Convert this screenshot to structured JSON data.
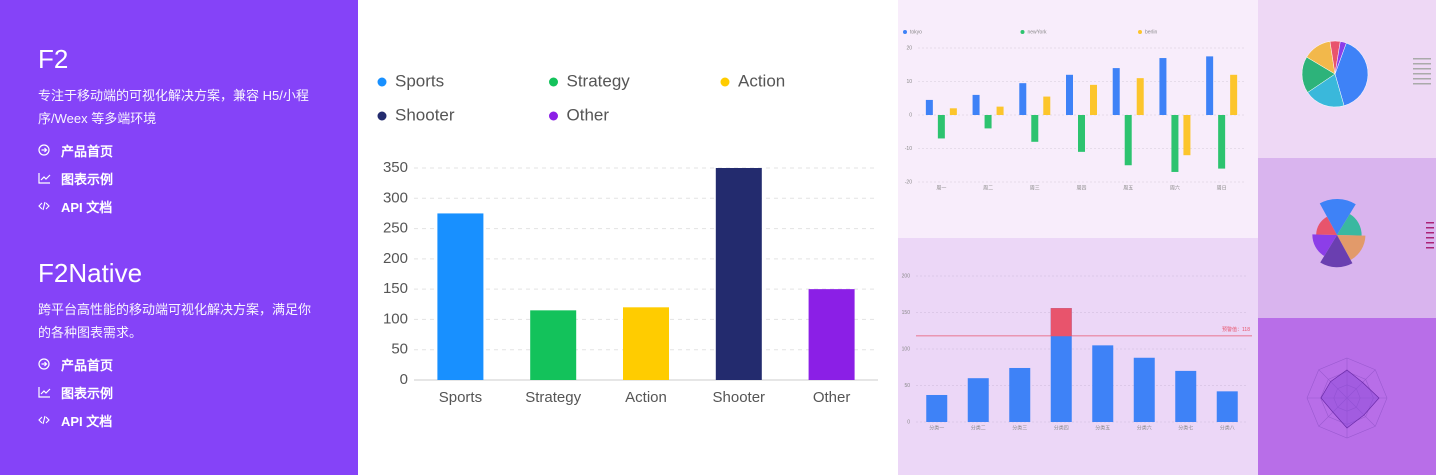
{
  "sidebar": [
    {
      "title": "F2",
      "description": "专注于移动端的可视化解决方案，兼容 H5/小程序/Weex 等多端环境",
      "links": [
        "产品首页",
        "图表示例",
        "API 文档"
      ]
    },
    {
      "title": "F2Native",
      "description": "跨平台高性能的移动端可视化解决方案，满足你的各种图表需求。",
      "links": [
        "产品首页",
        "图表示例",
        "API 文档"
      ]
    }
  ],
  "chart_data": [
    {
      "type": "bar",
      "categories": [
        "Sports",
        "Strategy",
        "Action",
        "Shooter",
        "Other"
      ],
      "values": [
        275,
        115,
        120,
        350,
        150
      ],
      "colors": [
        "#1890ff",
        "#13c25b",
        "#ffcc00",
        "#232b6e",
        "#8b1fe6"
      ],
      "ylim": [
        0,
        350
      ],
      "yticks": [
        0,
        50,
        100,
        150,
        200,
        250,
        300,
        350
      ],
      "grid": true,
      "legend": "top"
    },
    {
      "type": "grouped_bar",
      "categories": [
        "周一",
        "周二",
        "周三",
        "周四",
        "周五",
        "周六",
        "周日"
      ],
      "series": [
        {
          "name": "tokyo",
          "color": "#3e82f7",
          "values": [
            4.5,
            6,
            9.5,
            12,
            14,
            17,
            17.5
          ]
        },
        {
          "name": "newYork",
          "color": "#2dc36f",
          "values": [
            -7,
            -4,
            -8,
            -11,
            -15,
            -17,
            -16
          ]
        },
        {
          "name": "berlin",
          "color": "#fcc52c",
          "values": [
            2,
            2.5,
            5.5,
            9,
            11,
            -12,
            12
          ]
        }
      ],
      "ylim": [
        -20,
        20
      ],
      "yticks": [
        -20,
        -10,
        0,
        10,
        20
      ],
      "grid": true
    },
    {
      "type": "threshold_bar",
      "categories": [
        "分类一",
        "分类二",
        "分类三",
        "分类四",
        "分类五",
        "分类六",
        "分类七",
        "分类八"
      ],
      "values": [
        37,
        60,
        74,
        156,
        105,
        88,
        70,
        42
      ],
      "color": "#3e82f7",
      "alert_color": "#e8546c",
      "threshold": 118,
      "threshold_label": "预警值：118",
      "ylim": [
        0,
        200
      ],
      "yticks": [
        0,
        50,
        100,
        150,
        200
      ],
      "grid": true
    },
    {
      "type": "pie",
      "values": [
        40,
        20,
        18,
        14,
        5,
        3
      ],
      "colors": [
        "#3e82f7",
        "#3ab8db",
        "#2db37a",
        "#f2b84b",
        "#e8546c",
        "#8c3ee8"
      ]
    },
    {
      "type": "rose",
      "values": [
        38,
        26,
        30,
        34,
        26,
        22
      ],
      "colors": [
        "#3e82f7",
        "#3ab8a0",
        "#e29a6a",
        "#6a3fb0",
        "#8c3ee8",
        "#e8546c"
      ]
    },
    {
      "type": "radar",
      "values": [
        70,
        55,
        80,
        60,
        75,
        50,
        65,
        58
      ],
      "color": "#8c4ad8"
    }
  ]
}
